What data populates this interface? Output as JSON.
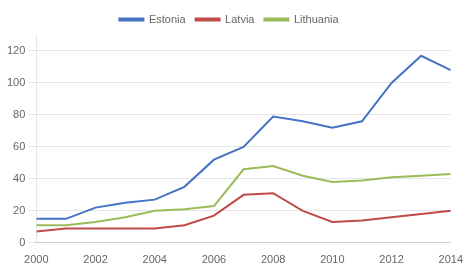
{
  "chart_data": {
    "type": "line",
    "x": [
      2000,
      2001,
      2002,
      2003,
      2004,
      2005,
      2006,
      2007,
      2008,
      2009,
      2010,
      2011,
      2012,
      2013,
      2014
    ],
    "series": [
      {
        "name": "Estonia",
        "color": "#4472C4",
        "values": [
          15,
          15,
          22,
          25,
          27,
          35,
          52,
          60,
          79,
          76,
          72,
          76,
          100,
          117,
          108
        ]
      },
      {
        "name": "Latvia",
        "color": "#BE4B48",
        "values": [
          7,
          9,
          9,
          9,
          9,
          11,
          17,
          30,
          31,
          20,
          13,
          14,
          16,
          18,
          20
        ]
      },
      {
        "name": "Lithuania",
        "color": "#9BBB59",
        "values": [
          11,
          11,
          13,
          16,
          20,
          21,
          23,
          46,
          48,
          42,
          38,
          39,
          41,
          42,
          43
        ]
      }
    ],
    "xlim": [
      2000,
      2014
    ],
    "xticks": [
      2000,
      2002,
      2004,
      2006,
      2008,
      2010,
      2012,
      2014
    ],
    "ylim": [
      0,
      130
    ],
    "yticks": [
      0,
      20,
      40,
      60,
      80,
      100,
      120
    ],
    "grid": "y",
    "legend": "top"
  }
}
